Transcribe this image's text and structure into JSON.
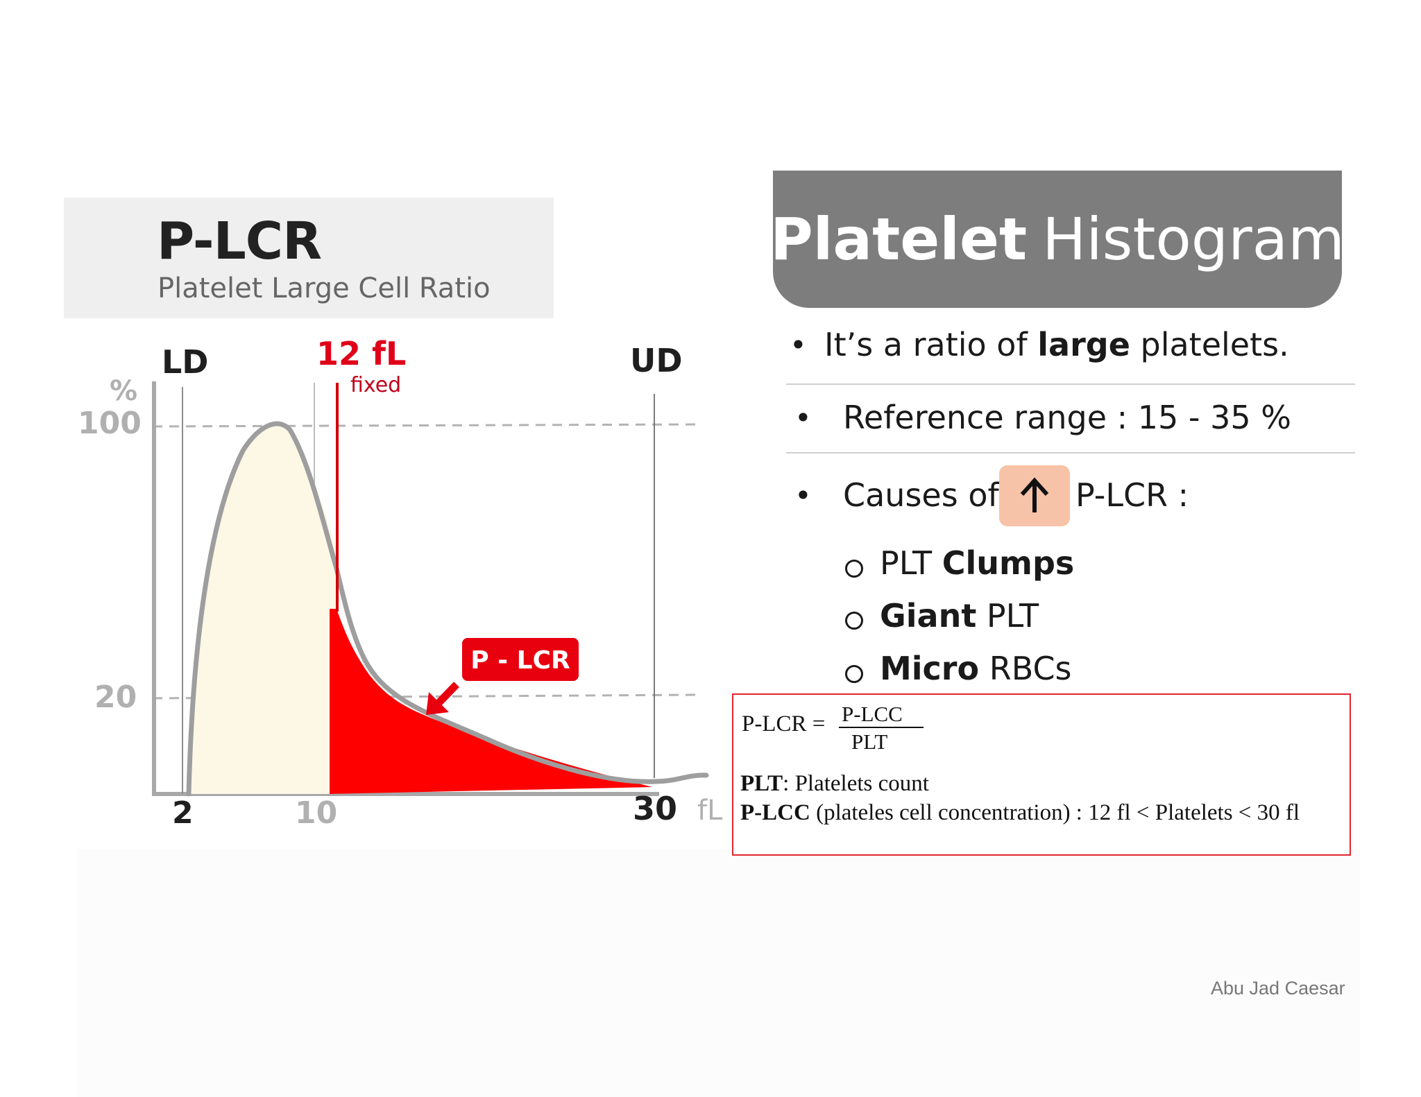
{
  "left_header": {
    "title": "P-LCR",
    "subtitle": "Platelet Large Cell Ratio"
  },
  "histogram": {
    "lower_discriminator": "LD",
    "upper_discriminator": "UD",
    "threshold_label": "12 fL",
    "threshold_note": "fixed",
    "y_unit": "%",
    "y_ticks": [
      "100",
      "20"
    ],
    "x_ticks": [
      "2",
      "10",
      "30"
    ],
    "x_unit": "fL",
    "region_label": "P - LCR",
    "colors": {
      "curve": "#9e9e9e",
      "fill": "#fdf7e6",
      "region": "#ff0000",
      "threshold": "#d10000"
    }
  },
  "banner": {
    "title_bold": "Platelet",
    "title_regular": "Histogram"
  },
  "bullets": {
    "b1_pre": "It’s a ratio of ",
    "b1_bold": "large",
    "b1_post": " platelets.",
    "b2": "Reference range : 15 - 35 %",
    "b3_pre": "Causes of",
    "b3_icon": "up-arrow-icon",
    "b3_post": "P-LCR :",
    "sub": [
      {
        "regular_before": "PLT ",
        "bold": "Clumps",
        "regular_after": ""
      },
      {
        "regular_before": "",
        "bold": "Giant",
        "regular_after": " PLT"
      },
      {
        "regular_before": "",
        "bold": "Micro",
        "regular_after": " RBCs"
      }
    ]
  },
  "formula": {
    "lhs": "P-LCR =",
    "numerator": "P-LCC",
    "denominator": "PLT",
    "def1_bold": "PLT",
    "def1_text": ": Platelets count",
    "def2_bold": "P-LCC",
    "def2_text": " (plateles cell concentration) : 12 fl < Platelets < 30 fl"
  },
  "author": "Abu Jad Caesar"
}
